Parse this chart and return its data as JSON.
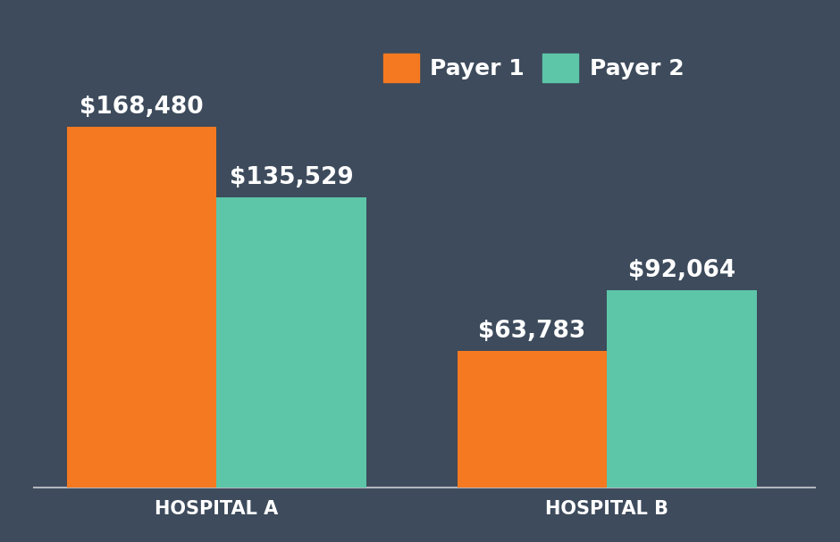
{
  "hospitals": [
    "HOSPITAL A",
    "HOSPITAL B"
  ],
  "payer1_values": [
    168480,
    63783
  ],
  "payer2_values": [
    135529,
    92064
  ],
  "payer1_labels": [
    "$168,480",
    "$63,783"
  ],
  "payer2_labels": [
    "$135,529",
    "$92,064"
  ],
  "payer1_color": "#F47920",
  "payer2_color": "#5DC5A8",
  "background_color": "#3D4B5C",
  "text_color": "#FFFFFF",
  "legend_labels": [
    "Payer 1",
    "Payer 2"
  ],
  "bar_width": 0.18,
  "group_centers": [
    0.25,
    0.72
  ],
  "ylim": [
    0,
    210000
  ],
  "label_fontsize": 19,
  "xtick_fontsize": 15,
  "legend_fontsize": 18
}
